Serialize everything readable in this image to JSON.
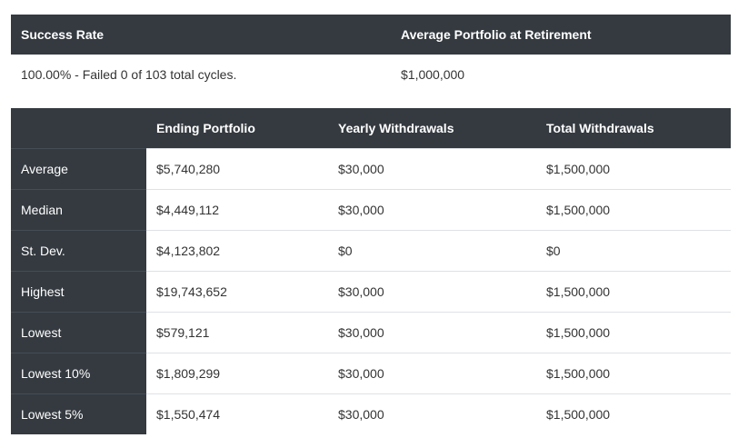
{
  "summary": {
    "headers": [
      "Success Rate",
      "Average Portfolio at Retirement"
    ],
    "values": [
      "100.00% - Failed 0 of 103 total cycles.",
      "$1,000,000"
    ]
  },
  "table": {
    "headers": [
      "Ending Portfolio",
      "Yearly Withdrawals",
      "Total Withdrawals"
    ],
    "rows": [
      [
        "Average",
        "$5,740,280",
        "$30,000",
        "$1,500,000"
      ],
      [
        "Median",
        "$4,449,112",
        "$30,000",
        "$1,500,000"
      ],
      [
        "St. Dev.",
        "$4,123,802",
        "$0",
        "$0"
      ],
      [
        "Highest",
        "$19,743,652",
        "$30,000",
        "$1,500,000"
      ],
      [
        "Lowest",
        "$579,121",
        "$30,000",
        "$1,500,000"
      ],
      [
        "Lowest 10%",
        "$1,809,299",
        "$30,000",
        "$1,500,000"
      ],
      [
        "Lowest 5%",
        "$1,550,474",
        "$30,000",
        "$1,500,000"
      ]
    ]
  }
}
